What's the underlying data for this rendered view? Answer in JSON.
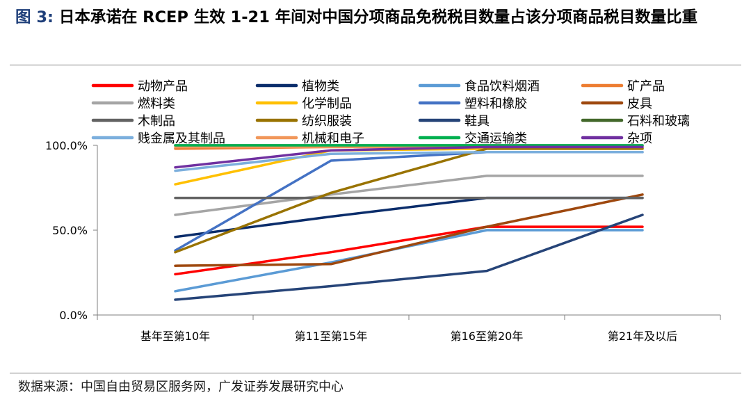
{
  "figure": {
    "label": "图 3:",
    "title": "日本承诺在 RCEP 生效 1-21 年间对中国分项商品免税税目数量占该分项商品税目数量比重"
  },
  "source": "数据来源：中国自由贸易区服务网，广发证券发展研究中心",
  "chart_data": {
    "type": "line",
    "title": "日本承诺在 RCEP 生效 1-21 年间对中国分项商品免税税目数量占该分项商品税目数量比重",
    "xlabel": "",
    "ylabel": "",
    "categories": [
      "基年至第10年",
      "第11至第15年",
      "第16至第20年",
      "第21年及以后"
    ],
    "ylim": [
      0,
      100
    ],
    "yticks": [
      0,
      50,
      100
    ],
    "ytick_labels": [
      "0.0%",
      "50.0%",
      "100.0%"
    ],
    "grid": false,
    "legend_position": "top",
    "series": [
      {
        "name": "动物产品",
        "color": "#ff0000",
        "values": [
          24,
          37,
          52,
          52
        ]
      },
      {
        "name": "植物类",
        "color": "#0b2d6b",
        "values": [
          46,
          58,
          69,
          69
        ]
      },
      {
        "name": "食品饮料烟酒",
        "color": "#5b9bd5",
        "values": [
          14,
          31,
          50,
          50
        ]
      },
      {
        "name": "矿产品",
        "color": "#ed7d31",
        "values": [
          98,
          99,
          99,
          99
        ]
      },
      {
        "name": "燃料类",
        "color": "#a5a5a5",
        "values": [
          59,
          71,
          82,
          82
        ]
      },
      {
        "name": "化学制品",
        "color": "#ffc000",
        "values": [
          77,
          97,
          98,
          98
        ]
      },
      {
        "name": "塑料和橡胶",
        "color": "#4472c4",
        "values": [
          38,
          91,
          96,
          96
        ]
      },
      {
        "name": "皮具",
        "color": "#9e480e",
        "values": [
          29,
          30,
          52,
          71
        ]
      },
      {
        "name": "木制品",
        "color": "#636363",
        "values": [
          69,
          69,
          69,
          69
        ]
      },
      {
        "name": "纺织服装",
        "color": "#997300",
        "values": [
          37,
          72,
          98,
          98
        ]
      },
      {
        "name": "鞋具",
        "color": "#264478",
        "values": [
          9,
          17,
          26,
          59
        ]
      },
      {
        "name": "石料和玻璃",
        "color": "#43682b",
        "values": [
          100,
          100,
          100,
          100
        ]
      },
      {
        "name": "贱金属及其制品",
        "color": "#7cafdd",
        "values": [
          85,
          95,
          96,
          96
        ]
      },
      {
        "name": "机械和电子",
        "color": "#f1975a",
        "values": [
          99,
          99,
          99,
          99
        ]
      },
      {
        "name": "交通运输类",
        "color": "#00b050",
        "values": [
          100,
          100,
          100,
          100
        ]
      },
      {
        "name": "杂项",
        "color": "#7030a0",
        "values": [
          87,
          97,
          99,
          99
        ]
      }
    ]
  }
}
